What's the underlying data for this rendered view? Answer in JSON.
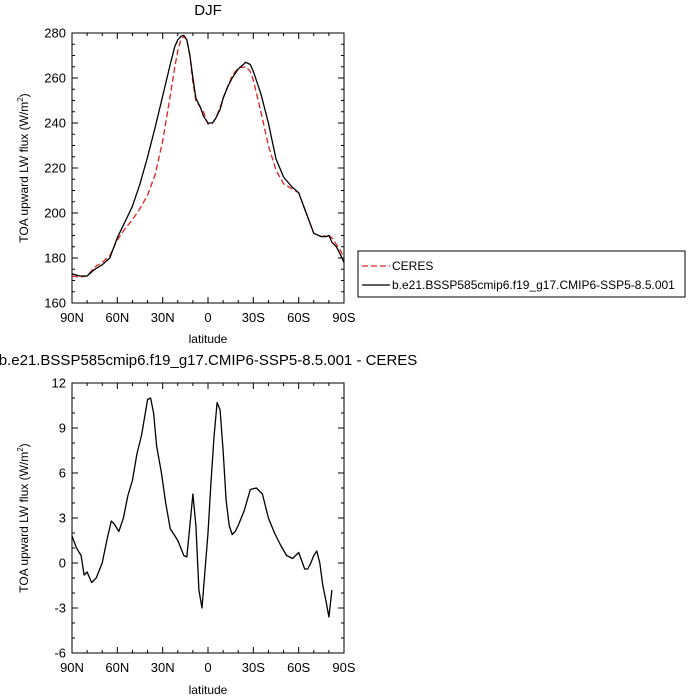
{
  "chart_data": [
    {
      "type": "line",
      "title": "DJF",
      "xlabel": "latitude",
      "ylabel": "TOA upward LW flux (W/m",
      "ylabel_sup": "2",
      "ylabel_close": ")",
      "xlim": [
        90,
        -90
      ],
      "ylim": [
        160,
        280
      ],
      "x_ticks": [
        90,
        60,
        30,
        0,
        -30,
        -60,
        -90
      ],
      "x_tick_labels": [
        "90N",
        "60N",
        "30N",
        "0",
        "30S",
        "60S",
        "90S"
      ],
      "y_ticks": [
        160,
        180,
        200,
        220,
        240,
        260,
        280
      ],
      "y_tick_labels": [
        "160",
        "180",
        "200",
        "220",
        "240",
        "260",
        "280"
      ],
      "legend_position": "right",
      "series": [
        {
          "name": "CERES",
          "color": "#e02020",
          "dash": "dashed",
          "x": [
            90,
            85,
            80,
            75,
            70,
            65,
            60,
            55,
            50,
            45,
            40,
            35,
            30,
            25,
            22,
            20,
            18,
            16,
            14,
            12,
            10,
            8,
            5,
            3,
            0,
            -3,
            -5,
            -8,
            -10,
            -13,
            -16,
            -20,
            -25,
            -28,
            -30,
            -35,
            -40,
            -45,
            -50,
            -55,
            -60,
            -65,
            -70,
            -75,
            -78,
            -80,
            -82,
            -85,
            -88,
            -90
          ],
          "y": [
            172,
            171.5,
            172,
            176,
            178,
            181,
            188,
            193,
            197,
            202,
            208,
            217,
            232,
            252,
            265,
            272,
            277,
            278.5,
            277,
            270,
            258,
            250,
            247,
            245,
            239.5,
            240,
            242,
            247,
            251,
            256,
            261,
            264.5,
            265,
            263,
            259,
            245,
            230,
            219,
            213,
            211,
            209,
            200,
            191,
            189.5,
            190,
            190,
            189,
            186,
            183,
            180
          ]
        },
        {
          "name": "b.e21.BSSP585cmip6.f19_g17.CMIP6-SSP5-8.5.001",
          "color": "#000000",
          "dash": "solid",
          "x": [
            90,
            85,
            80,
            75,
            70,
            65,
            60,
            55,
            50,
            45,
            40,
            35,
            30,
            25,
            22,
            20,
            18,
            16,
            14,
            12,
            10,
            8,
            5,
            3,
            0,
            -3,
            -5,
            -8,
            -10,
            -13,
            -16,
            -20,
            -25,
            -28,
            -30,
            -35,
            -40,
            -45,
            -50,
            -55,
            -60,
            -65,
            -70,
            -75,
            -78,
            -80,
            -82,
            -85,
            -88,
            -90
          ],
          "y": [
            173,
            172,
            172,
            175,
            177,
            180,
            189,
            196,
            203,
            213,
            225,
            238,
            252,
            266,
            274,
            277,
            278.5,
            279,
            277,
            270,
            260,
            251,
            247,
            243,
            240,
            240,
            242,
            246,
            251,
            256,
            260,
            264,
            267,
            266,
            263,
            253,
            240,
            224,
            216,
            212,
            209,
            200,
            191,
            189.5,
            189.5,
            190,
            187,
            185,
            181,
            178
          ]
        }
      ]
    },
    {
      "type": "line",
      "title": "b.e21.BSSP585cmip6.f19_g17.CMIP6-SSP5-8.5.001 - CERES",
      "xlabel": "latitude",
      "ylabel": "TOA upward LW flux (W/m",
      "ylabel_sup": "2",
      "ylabel_close": ")",
      "xlim": [
        90,
        -90
      ],
      "ylim": [
        -6,
        12
      ],
      "x_ticks": [
        90,
        60,
        30,
        0,
        -30,
        -60,
        -90
      ],
      "x_tick_labels": [
        "90N",
        "60N",
        "30N",
        "0",
        "30S",
        "60S",
        "90S"
      ],
      "y_ticks": [
        -6,
        -3,
        0,
        3,
        6,
        9,
        12
      ],
      "y_tick_labels": [
        "-6",
        "-3",
        "0",
        "3",
        "6",
        "9",
        "12"
      ],
      "series": [
        {
          "color": "#000000",
          "dash": "solid",
          "x": [
            90,
            87,
            84,
            82,
            80,
            77,
            74,
            70,
            67,
            64,
            62,
            59,
            56,
            53,
            50,
            47,
            44,
            40,
            38,
            36,
            34,
            31,
            28,
            25,
            20,
            16,
            14,
            12,
            10,
            8,
            6,
            4,
            2,
            0,
            -2,
            -4,
            -6,
            -8,
            -10,
            -12,
            -14,
            -16,
            -18,
            -20,
            -24,
            -28,
            -32,
            -36,
            -40,
            -44,
            -46,
            -48,
            -52,
            -56,
            -60,
            -64,
            -66,
            -68,
            -70,
            -72,
            -74,
            -76,
            -78,
            -80,
            -82,
            -84,
            -86,
            -88,
            -90
          ],
          "y": [
            1.8,
            1,
            0.5,
            -0.8,
            -0.6,
            -1.3,
            -1,
            0,
            1.5,
            2.8,
            2.6,
            2.1,
            3,
            4.5,
            5.5,
            7.3,
            8.5,
            10.9,
            11,
            10,
            7.8,
            6.1,
            4,
            2.3,
            1.5,
            0.5,
            0.4,
            2.5,
            4.6,
            2.5,
            -1.8,
            -3,
            -0.5,
            2,
            5.4,
            8.4,
            10.7,
            10.2,
            7.5,
            4.2,
            2.5,
            1.9,
            2.1,
            2.5,
            3.5,
            4.9,
            5,
            4.6,
            3,
            2,
            1.6,
            1.2,
            0.5,
            0.3,
            0.7,
            -0.4,
            -0.4,
            0,
            0.5,
            0.8,
            0,
            -1.5,
            -2.5,
            -3.6,
            -1.8,
            null,
            null,
            null,
            null
          ]
        }
      ]
    }
  ]
}
